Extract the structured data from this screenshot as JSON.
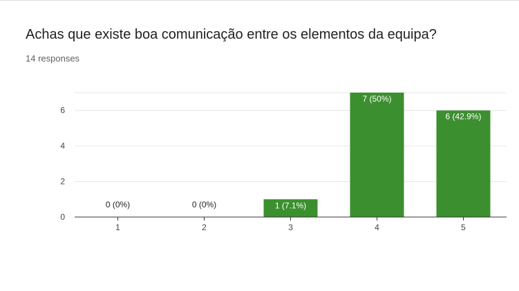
{
  "question": {
    "title": "Achas que existe boa comunicação entre os elementos da equipa?",
    "responses": "14 responses"
  },
  "colors": {
    "bar": "#3c8f2f",
    "gridline": "#e6e6e6",
    "baseline": "#333333",
    "label_on_bar": "#ffffff",
    "label_outside": "#222222"
  },
  "chart_data": {
    "type": "bar",
    "title": "",
    "xlabel": "",
    "ylabel": "",
    "categories": [
      "1",
      "2",
      "3",
      "4",
      "5"
    ],
    "values": [
      0,
      0,
      1,
      7,
      6
    ],
    "data_labels": [
      "0 (0%)",
      "0 (0%)",
      "1 (7.1%)",
      "7 (50%)",
      "6 (42.9%)"
    ],
    "ylim": [
      0,
      7
    ],
    "yticks": [
      0,
      2,
      4,
      6
    ],
    "grid": true,
    "legend": "none"
  }
}
